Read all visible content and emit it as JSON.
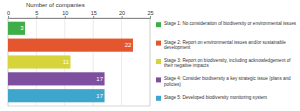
{
  "chart_data": {
    "type": "bar",
    "orientation": "horizontal",
    "title": "Number of companies",
    "categories": [
      "Stage 1: No consideration of biodiversity or environmental issues",
      "Stage 2: Report on environmental issues and/or sustainable development",
      "Stage 3: Report on biodiversity, including acknowledgement of their negative impacts",
      "Stage 4: Consider biodiversity a key strategic issue (plans and policies)",
      "Stage 5: Developed biodiversity monitoring system"
    ],
    "values": [
      3,
      22,
      11,
      17,
      17
    ],
    "colors": [
      "#3fae49",
      "#e4572e",
      "#d6d43a",
      "#7d4f9e",
      "#3ea6cc"
    ],
    "xlim": [
      0,
      25
    ],
    "xticks": [
      0,
      5,
      10,
      15,
      20,
      25
    ],
    "grid": true,
    "legend": "right",
    "data_labels": true,
    "tick_labels": "x"
  }
}
